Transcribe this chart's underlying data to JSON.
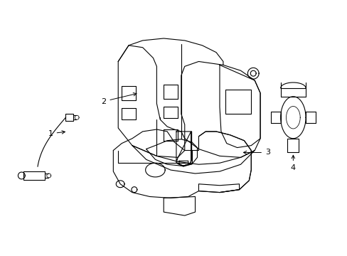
{
  "background_color": "#ffffff",
  "line_color": "#000000",
  "line_width": 0.8,
  "label_fontsize": 8
}
